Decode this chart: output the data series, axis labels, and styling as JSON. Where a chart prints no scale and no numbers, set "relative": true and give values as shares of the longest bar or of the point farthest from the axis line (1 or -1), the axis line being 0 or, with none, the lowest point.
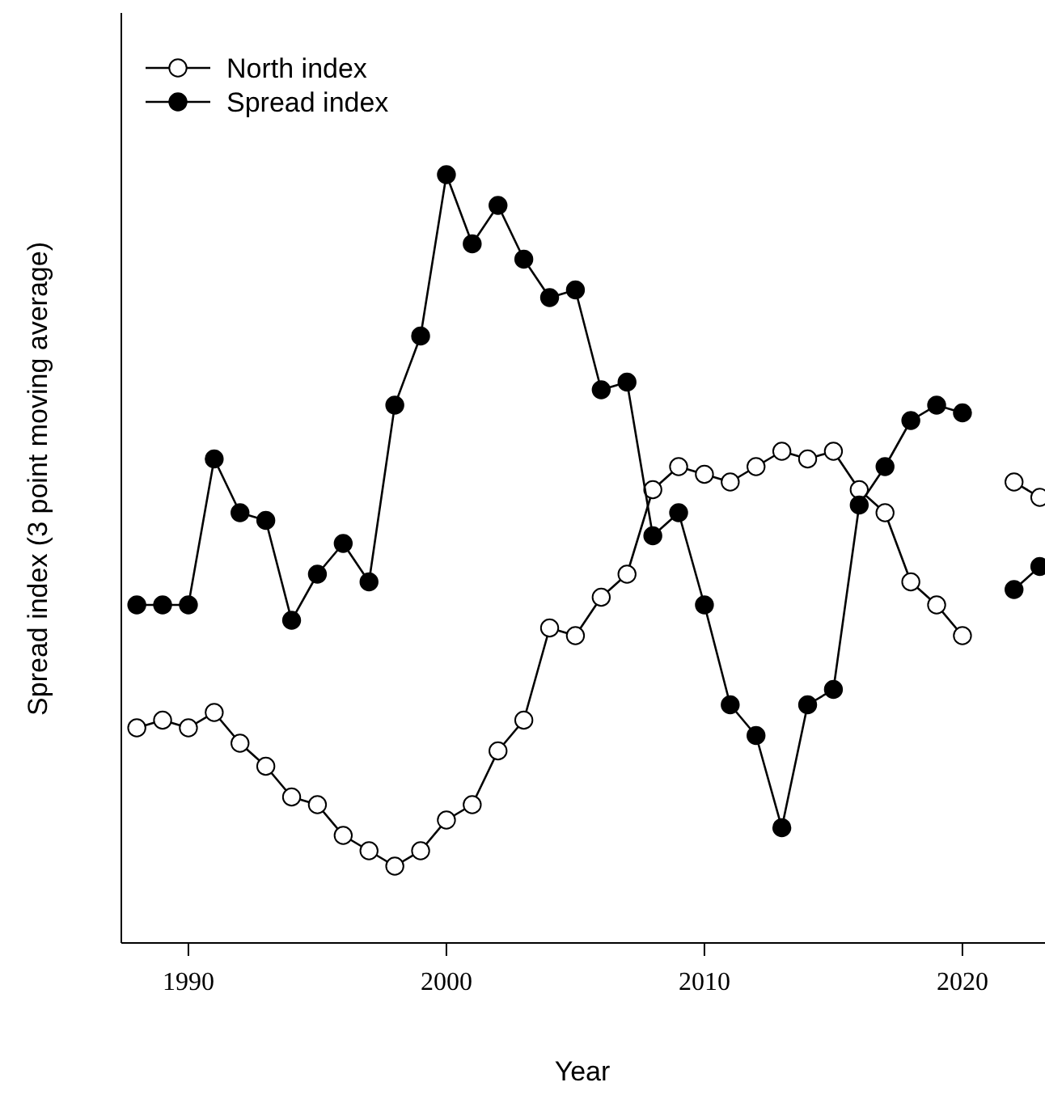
{
  "chart_data": {
    "type": "line",
    "relative": true,
    "xlabel": "Year",
    "ylabel": "Spread index (3 point moving average)",
    "x": [
      1988,
      1989,
      1990,
      1991,
      1992,
      1993,
      1994,
      1995,
      1996,
      1997,
      1998,
      1999,
      2000,
      2001,
      2002,
      2003,
      2004,
      2005,
      2006,
      2007,
      2008,
      2009,
      2010,
      2011,
      2012,
      2013,
      2014,
      2015,
      2016,
      2017,
      2018,
      2019,
      2020,
      2021,
      2022,
      2023
    ],
    "xlim": [
      1987.4,
      2023.2
    ],
    "xticks": [
      1990,
      2000,
      2010,
      2020
    ],
    "marker": "circle",
    "line_style": "solid",
    "legend": "top left",
    "grid": false,
    "series": [
      {
        "name": "North index",
        "color": "#000000",
        "values": [
          0.28,
          0.29,
          0.28,
          0.3,
          0.26,
          0.23,
          0.19,
          0.18,
          0.14,
          0.12,
          0.1,
          0.12,
          0.16,
          0.18,
          0.25,
          0.29,
          0.41,
          0.4,
          0.45,
          0.48,
          0.59,
          0.62,
          0.61,
          0.6,
          0.62,
          0.64,
          0.63,
          0.64,
          0.59,
          0.56,
          0.47,
          0.44,
          0.4,
          null,
          0.6,
          0.58
        ]
      },
      {
        "name": "Spread index",
        "color": "#000000",
        "values": [
          0.44,
          0.44,
          0.44,
          0.63,
          0.56,
          0.55,
          0.42,
          0.48,
          0.52,
          0.47,
          0.7,
          0.79,
          1,
          0.91,
          0.96,
          0.89,
          0.84,
          0.85,
          0.72,
          0.73,
          0.53,
          0.56,
          0.44,
          0.31,
          0.27,
          0.15,
          0.31,
          0.33,
          0.57,
          0.62,
          0.68,
          0.7,
          0.69,
          null,
          0.46,
          0.49
        ]
      }
    ]
  }
}
